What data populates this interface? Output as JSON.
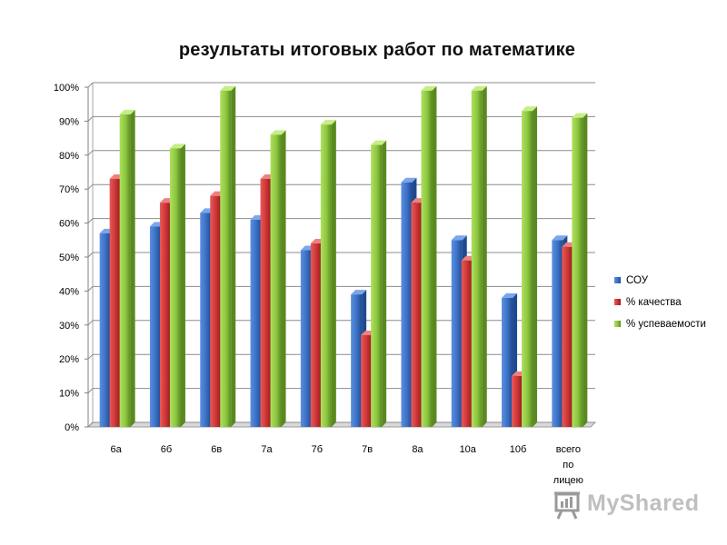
{
  "chart_data": {
    "type": "bar",
    "title": "результаты итоговых работ по математике",
    "categories": [
      "6а",
      "6б",
      "6в",
      "7а",
      "7б",
      "7в",
      "8а",
      "10а",
      "10б",
      "всего по лицею"
    ],
    "series": [
      {
        "name": "СОУ",
        "color": "#3a6fc4",
        "values": [
          57,
          59,
          63,
          61,
          52,
          39,
          72,
          55,
          38,
          55
        ]
      },
      {
        "name": "% качества",
        "color": "#cc3333",
        "values": [
          73,
          66,
          68,
          73,
          54,
          27,
          66,
          49,
          15,
          53
        ]
      },
      {
        "name": "% успеваемости",
        "color": "#8cc63f",
        "values": [
          92,
          82,
          99,
          86,
          89,
          83,
          99,
          99,
          93,
          91
        ]
      }
    ],
    "ylim": [
      0,
      100
    ],
    "yticks": [
      "0%",
      "10%",
      "20%",
      "30%",
      "40%",
      "50%",
      "60%",
      "70%",
      "80%",
      "90%",
      "100%"
    ],
    "grid": true,
    "legend": "right"
  },
  "watermark": {
    "text": "MyShared"
  }
}
